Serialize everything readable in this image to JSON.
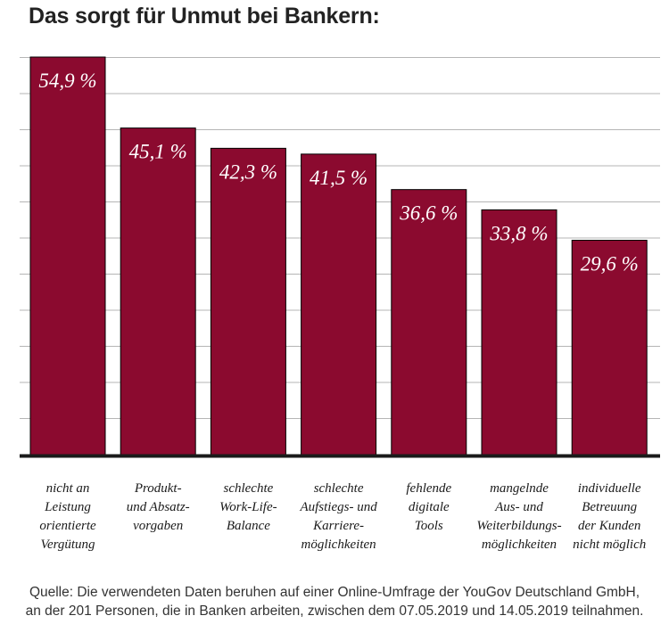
{
  "title": "Das sorgt für Unmut bei Bankern:",
  "chart_data": {
    "type": "bar",
    "categories": [
      "nicht an Leistung orientierte Vergütung",
      "Produkt- und Absatzvorgaben",
      "schlechte Work-Life-Balance",
      "schlechte Aufstiegs- und Karrieremöglichkeiten",
      "fehlende digitale Tools",
      "mangelnde Aus- und Weiterbildungsmöglichkeiten",
      "individuelle Betreuung der Kunden nicht möglich"
    ],
    "category_lines": [
      [
        "nicht an",
        "Leistung",
        "orientierte",
        "Vergütung"
      ],
      [
        "Produkt-",
        "und Absatz-",
        "vorgaben"
      ],
      [
        "schlechte",
        "Work-Life-",
        "Balance"
      ],
      [
        "schlechte",
        "Aufstiegs- und",
        "Karriere-",
        "möglichkeiten"
      ],
      [
        "fehlende",
        "digitale",
        "Tools"
      ],
      [
        "mangelnde",
        "Aus- und",
        "Weiterbildungs-",
        "möglichkeiten"
      ],
      [
        "individuelle",
        "Betreuung",
        "der Kunden",
        "nicht möglich"
      ]
    ],
    "values": [
      54.9,
      45.1,
      42.3,
      41.5,
      36.6,
      33.8,
      29.6
    ],
    "value_labels": [
      "54,9 %",
      "45,1 %",
      "42,3 %",
      "41,5 %",
      "36,6 %",
      "33,8 %",
      "29,6 %"
    ],
    "unit": "%",
    "ylim": [
      0,
      55
    ],
    "grid": true,
    "bar_color": "#8b0a2f",
    "grid_color": "#b5b5b5",
    "baseline_color": "#1a1a1a"
  },
  "source": {
    "line1": "Quelle: Die verwendeten Daten beruhen auf einer Online-Umfrage der YouGov Deutschland GmbH,",
    "line2": "an der 201 Personen, die in Banken arbeiten, zwischen dem 07.05.2019 und 14.05.2019 teilnahmen."
  }
}
